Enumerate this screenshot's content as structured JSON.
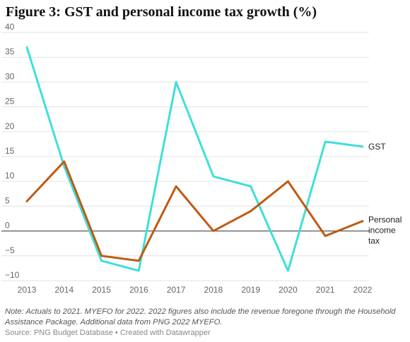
{
  "title": "Figure 3: GST and personal income tax growth (%)",
  "note": "Note: Actuals to 2021. MYEFO for 2022. 2022 figures also include the revenue foregone through the Household Assistance Package. Additional data from PNG 2022 MYEFO.",
  "source": "Source: PNG Budget Database • Created with Datawrapper",
  "chart_data": {
    "type": "line",
    "title": "Figure 3: GST and personal income tax growth (%)",
    "x": [
      "2013",
      "2014",
      "2015",
      "2016",
      "2017",
      "2018",
      "2019",
      "2020",
      "2021",
      "2022"
    ],
    "ylim": [
      -10,
      40
    ],
    "yticks": [
      40,
      35,
      30,
      25,
      20,
      15,
      10,
      5,
      0,
      -5,
      -10
    ],
    "grid": true,
    "series": [
      {
        "name": "GST",
        "label_lines": [
          "GST"
        ],
        "color": "#3ee0d8",
        "values": [
          37,
          13,
          -6,
          -8,
          30,
          11,
          9,
          -8,
          18,
          17
        ]
      },
      {
        "name": "Personal income tax",
        "label_lines": [
          "Personal",
          "income",
          "tax"
        ],
        "color": "#bf5a12",
        "values": [
          6,
          14,
          -5,
          -6,
          9,
          0,
          4,
          10,
          -1,
          2
        ]
      }
    ]
  }
}
